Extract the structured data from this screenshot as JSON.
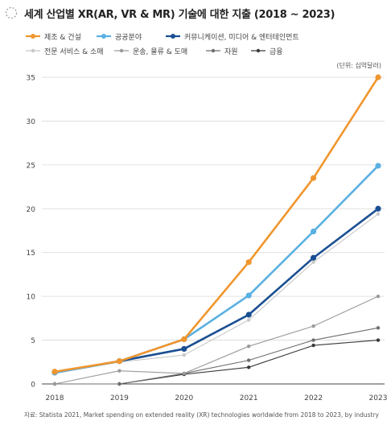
{
  "title": "세계 산업별 XR(AR, VR & MR) 기술에 대한 지출 (2018 ~ 2023)",
  "unit_label": "(단위: 십억달러)",
  "source": "자료:  Statista 2021, Market spending on extended reality (XR) technologies worldwide from 2018 to 2023, by industry",
  "chart_data": {
    "type": "line",
    "title": "세계 산업별 XR(AR, VR & MR) 기술에 대한 지출 (2018 ~ 2023)",
    "x": [
      "2018",
      "2019",
      "2020",
      "2021",
      "2022",
      "2023"
    ],
    "ylim": [
      0,
      35
    ],
    "yticks": [
      0,
      5,
      10,
      15,
      20,
      25,
      30,
      35
    ],
    "grid": true,
    "legend_position": "top",
    "series": [
      {
        "name": "제조 & 건설",
        "color": "#f0962e",
        "bold": true,
        "values": [
          1.4,
          2.6,
          5.1,
          13.9,
          23.5,
          35.0
        ]
      },
      {
        "name": "공공분야",
        "color": "#5ab0e2",
        "bold": true,
        "values": [
          1.3,
          2.6,
          5.1,
          10.1,
          17.4,
          24.9
        ]
      },
      {
        "name": "커뮤니케이션, 미디어 & 엔터테인먼트",
        "color": "#1a4f92",
        "bold": true,
        "values": [
          1.3,
          2.6,
          4.0,
          7.9,
          14.4,
          20.0
        ]
      },
      {
        "name": "전문 서비스 & 소매",
        "color": "#c8c8c8",
        "bold": false,
        "values": [
          1.2,
          2.5,
          3.3,
          7.3,
          13.9,
          19.4
        ]
      },
      {
        "name": "운송, 물류 & 도매",
        "color": "#9a9a9a",
        "bold": false,
        "values": [
          0.0,
          1.5,
          1.2,
          4.3,
          6.6,
          10.0
        ]
      },
      {
        "name": "자원",
        "color": "#6e6e6e",
        "bold": false,
        "values": [
          0.0,
          0.0,
          1.2,
          2.7,
          5.0,
          6.4
        ]
      },
      {
        "name": "금융",
        "color": "#3a3a3a",
        "bold": false,
        "values": [
          0.0,
          0.0,
          1.1,
          1.9,
          4.4,
          5.0
        ]
      }
    ]
  }
}
